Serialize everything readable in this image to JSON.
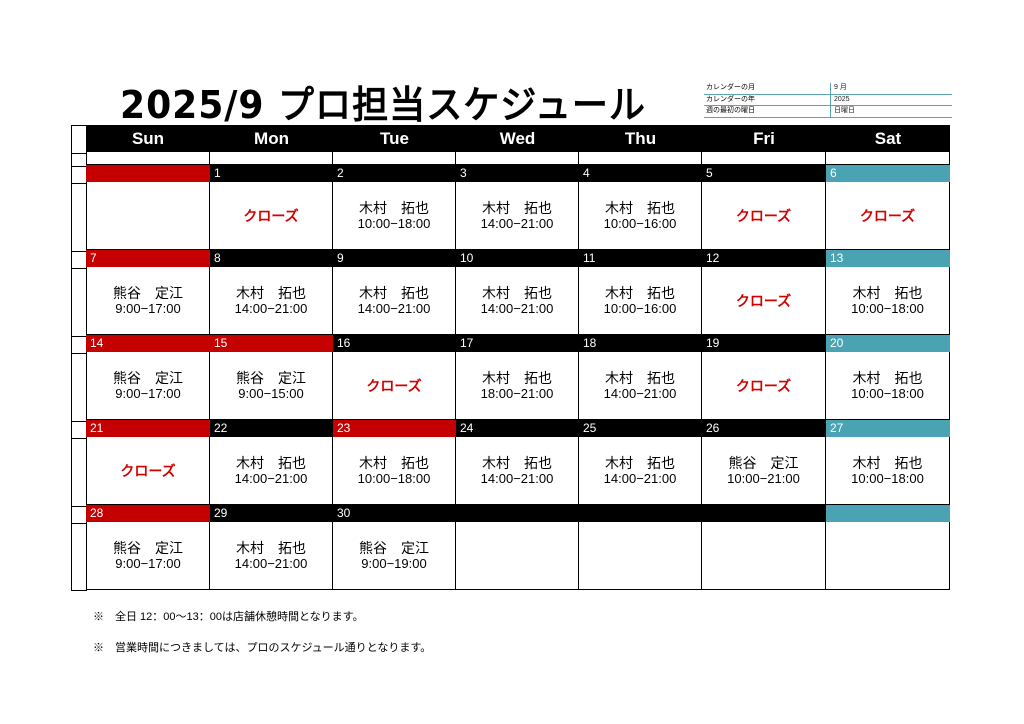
{
  "title": "2025/9  プロ担当スケジュール",
  "info": [
    {
      "label": "カレンダーの月",
      "value": "9 月"
    },
    {
      "label": "カレンダーの年",
      "value": "2025"
    },
    {
      "label": "週の最初の曜日",
      "value": "日曜日"
    }
  ],
  "weekdays": [
    "Sun",
    "Mon",
    "Tue",
    "Wed",
    "Thu",
    "Fri",
    "Sat"
  ],
  "colors": {
    "header": "#000000",
    "holiday_red": "#c40000",
    "saturday_teal": "#4aa3b2",
    "closed_text": "#d40000"
  },
  "weeks": [
    [
      {
        "day": "",
        "bar": "red",
        "name": "",
        "time": ""
      },
      {
        "day": "1",
        "bar": "black",
        "closed": "クローズ"
      },
      {
        "day": "2",
        "bar": "black",
        "name": "木村　拓也",
        "time": "10:00−18:00"
      },
      {
        "day": "3",
        "bar": "black",
        "name": "木村　拓也",
        "time": "14:00−21:00"
      },
      {
        "day": "4",
        "bar": "black",
        "name": "木村　拓也",
        "time": "10:00−16:00"
      },
      {
        "day": "5",
        "bar": "black",
        "closed": "クローズ"
      },
      {
        "day": "6",
        "bar": "teal",
        "closed": "クローズ"
      }
    ],
    [
      {
        "day": "7",
        "bar": "red",
        "name": "熊谷　定江",
        "time": "9:00−17:00"
      },
      {
        "day": "8",
        "bar": "black",
        "name": "木村　拓也",
        "time": "14:00−21:00"
      },
      {
        "day": "9",
        "bar": "black",
        "name": "木村　拓也",
        "time": "14:00−21:00"
      },
      {
        "day": "10",
        "bar": "black",
        "name": "木村　拓也",
        "time": "14:00−21:00"
      },
      {
        "day": "11",
        "bar": "black",
        "name": "木村　拓也",
        "time": "10:00−16:00"
      },
      {
        "day": "12",
        "bar": "black",
        "closed": "クローズ"
      },
      {
        "day": "13",
        "bar": "teal",
        "name": "木村　拓也",
        "time": "10:00−18:00"
      }
    ],
    [
      {
        "day": "14",
        "bar": "red",
        "name": "熊谷　定江",
        "time": "9:00−17:00"
      },
      {
        "day": "15",
        "bar": "red",
        "name": "熊谷　定江",
        "time": "9:00−15:00"
      },
      {
        "day": "16",
        "bar": "black",
        "closed": "クローズ"
      },
      {
        "day": "17",
        "bar": "black",
        "name": "木村　拓也",
        "time": "18:00−21:00"
      },
      {
        "day": "18",
        "bar": "black",
        "name": "木村　拓也",
        "time": "14:00−21:00"
      },
      {
        "day": "19",
        "bar": "black",
        "closed": "クローズ"
      },
      {
        "day": "20",
        "bar": "teal",
        "name": "木村　拓也",
        "time": "10:00−18:00"
      }
    ],
    [
      {
        "day": "21",
        "bar": "red",
        "closed": "クローズ"
      },
      {
        "day": "22",
        "bar": "black",
        "name": "木村　拓也",
        "time": "14:00−21:00"
      },
      {
        "day": "23",
        "bar": "red",
        "name": "木村　拓也",
        "time": "10:00−18:00"
      },
      {
        "day": "24",
        "bar": "black",
        "name": "木村　拓也",
        "time": "14:00−21:00"
      },
      {
        "day": "25",
        "bar": "black",
        "name": "木村　拓也",
        "time": "14:00−21:00"
      },
      {
        "day": "26",
        "bar": "black",
        "name": "熊谷　定江",
        "time": "10:00−21:00"
      },
      {
        "day": "27",
        "bar": "teal",
        "name": "木村　拓也",
        "time": "10:00−18:00"
      }
    ],
    [
      {
        "day": "28",
        "bar": "red",
        "name": "熊谷　定江",
        "time": "9:00−17:00"
      },
      {
        "day": "29",
        "bar": "black",
        "name": "木村　拓也",
        "time": "14:00−21:00"
      },
      {
        "day": "30",
        "bar": "black",
        "name": "熊谷　定江",
        "time": "9:00−19:00"
      },
      {
        "day": "",
        "bar": "black",
        "name": "",
        "time": ""
      },
      {
        "day": "",
        "bar": "black",
        "name": "",
        "time": ""
      },
      {
        "day": "",
        "bar": "black",
        "name": "",
        "time": ""
      },
      {
        "day": "",
        "bar": "teal",
        "name": "",
        "time": ""
      }
    ]
  ],
  "notes": [
    "※　全日 12：00～13：00は店舗休憩時間となります。",
    "※　営業時間につきましては、プロのスケジュール通りとなります。"
  ]
}
